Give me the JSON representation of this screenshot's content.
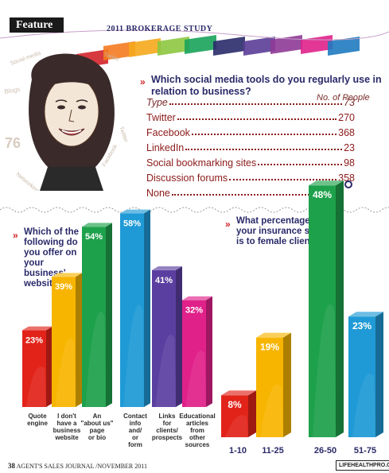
{
  "page": {
    "feature_label": "Feature",
    "study_title": "2011 BROKERAGE STUDY",
    "banner_colors": [
      "#d2232a",
      "#f47b20",
      "#f5a81c",
      "#8dc63f",
      "#1aa35a",
      "#2a2a6a",
      "#5b3d97",
      "#8e3a96",
      "#e0218a",
      "#1f7ac0"
    ],
    "footer_page": "38",
    "footer_text": "AGENT'S SALES JOURNAL",
    "footer_issue": "/NOVEMBER 2011",
    "footer_site": "LIFEHEALTHPRO.COM"
  },
  "portrait": {
    "words": [
      "Social media",
      "Blogs",
      "Twitter",
      "Facebook",
      "Networking",
      "Twitter",
      "76"
    ]
  },
  "question1": {
    "text": "Which social media tools do you regularly use in relation to business?",
    "column_header": "No. of People",
    "type_label": "Type",
    "type_value": "73",
    "rows": [
      {
        "label": "Twitter",
        "value": "270"
      },
      {
        "label": "Facebook",
        "value": "368"
      },
      {
        "label": "LinkedIn",
        "value": "23"
      },
      {
        "label": "Social bookmarking sites",
        "value": "98"
      },
      {
        "label": "Discussion forums",
        "value": "358"
      },
      {
        "label": "None",
        "value": ""
      }
    ]
  },
  "question2": {
    "text": "Which of the following do you offer on your business' website?"
  },
  "question3": {
    "text": "What percentage of your insurance sales is to female clients?"
  },
  "chart_data": [
    {
      "type": "bar",
      "categories": [
        "Quote engine",
        "I don't have a business website",
        "An \"about us\" page or bio",
        "Contact info and/ or form",
        "Links for clients/ prospects",
        "Educational articles from other sources"
      ],
      "values": [
        23,
        39,
        54,
        58,
        41,
        32
      ],
      "value_labels": [
        "23%",
        "39%",
        "54%",
        "58%",
        "41%",
        "32%"
      ],
      "colors": [
        "#e2231a",
        "#f7b500",
        "#1ea14b",
        "#1f9ad6",
        "#5b3fa0",
        "#e0218a"
      ],
      "unit": "%"
    },
    {
      "type": "bar",
      "categories": [
        "1-10",
        "11-25",
        "26-50",
        "51-75"
      ],
      "values": [
        8,
        19,
        48,
        23
      ],
      "value_labels": [
        "8%",
        "19%",
        "48%",
        "23%"
      ],
      "colors": [
        "#e2231a",
        "#f7b500",
        "#1ea14b",
        "#1f9ad6"
      ],
      "unit": "%"
    }
  ]
}
